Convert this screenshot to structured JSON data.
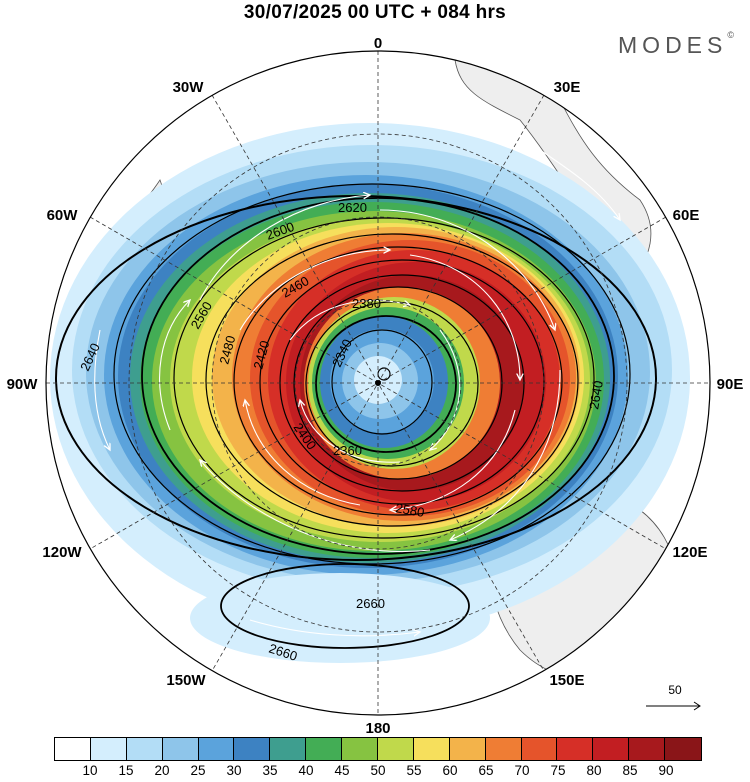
{
  "header": {
    "title": "30/07/2025  00 UTC  + 084 hrs",
    "brand": "MODES",
    "brand_mark": "©"
  },
  "map": {
    "projection": "south-polar-stereographic",
    "longitude_labels": {
      "top": "0",
      "top_right": "30E",
      "upper_right": "60E",
      "right": "90E",
      "lower_right": "120E",
      "bottom_right": "150E",
      "bottom": "180",
      "bottom_left": "150W",
      "lower_left": "120W",
      "left": "90W",
      "upper_left": "60W",
      "top_left": "30W"
    },
    "contour_labels": [
      "2620",
      "2600",
      "2580",
      "2560",
      "2480",
      "2460",
      "2420",
      "2400",
      "2380",
      "2360",
      "2340",
      "2640",
      "2660"
    ],
    "land_color": "#eeeeee",
    "coast_color": "#555555",
    "grid_color": "#333333"
  },
  "reference_vector": {
    "label": "50"
  },
  "colorbar": {
    "colors": [
      "#ffffff",
      "#d4eefd",
      "#b3ddf6",
      "#8ec5ea",
      "#5ba3dc",
      "#3d82c2",
      "#3e9e8f",
      "#43ad55",
      "#86c341",
      "#c0d94b",
      "#f6df5c",
      "#f3b34a",
      "#ef7d34",
      "#e5542b",
      "#d62f27",
      "#c21e22",
      "#a7191d",
      "#8a1518"
    ],
    "tick_labels": [
      "10",
      "15",
      "20",
      "25",
      "30",
      "35",
      "40",
      "45",
      "50",
      "55",
      "60",
      "65",
      "70",
      "75",
      "80",
      "85",
      "90"
    ]
  }
}
